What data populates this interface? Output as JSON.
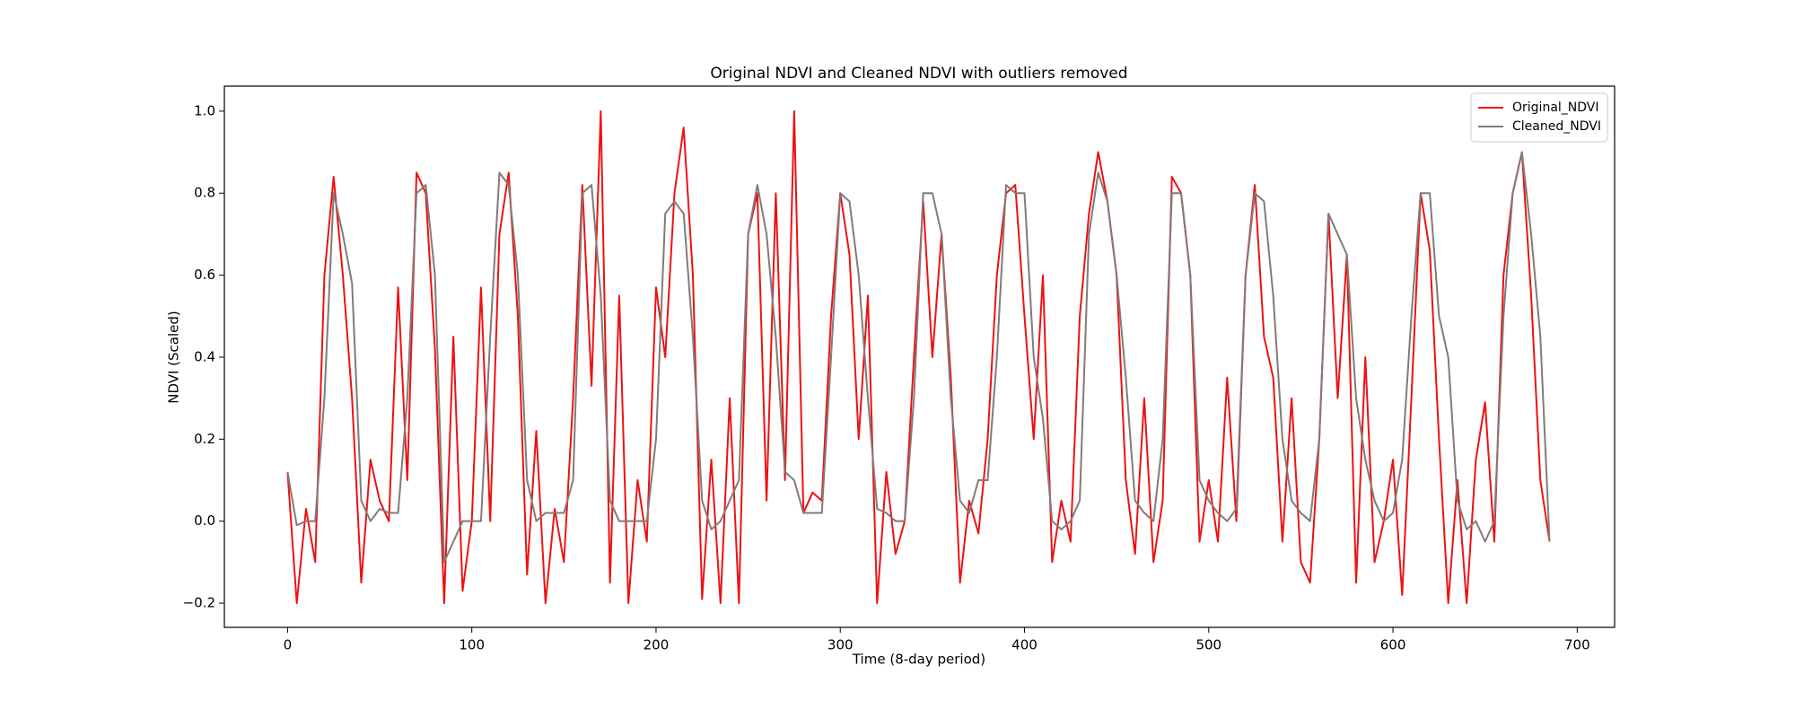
{
  "chart_data": {
    "type": "line",
    "title": "Original NDVI and Cleaned NDVI with outliers removed",
    "xlabel": "Time (8-day period)",
    "ylabel": "NDVI (Scaled)",
    "x": [
      0,
      5,
      10,
      15,
      20,
      25,
      30,
      35,
      40,
      45,
      50,
      55,
      60,
      65,
      70,
      75,
      80,
      85,
      90,
      95,
      100,
      105,
      110,
      115,
      120,
      125,
      130,
      135,
      140,
      145,
      150,
      155,
      160,
      165,
      170,
      175,
      180,
      185,
      190,
      195,
      200,
      205,
      210,
      215,
      220,
      225,
      230,
      235,
      240,
      245,
      250,
      255,
      260,
      265,
      270,
      275,
      280,
      285,
      290,
      295,
      300,
      305,
      310,
      315,
      320,
      325,
      330,
      335,
      340,
      345,
      350,
      355,
      360,
      365,
      370,
      375,
      380,
      385,
      390,
      395,
      400,
      405,
      410,
      415,
      420,
      425,
      430,
      435,
      440,
      445,
      450,
      455,
      460,
      465,
      470,
      475,
      480,
      485,
      490,
      495,
      500,
      505,
      510,
      515,
      520,
      525,
      530,
      535,
      540,
      545,
      550,
      555,
      560,
      565,
      570,
      575,
      580,
      585,
      590,
      595,
      600,
      605,
      610,
      615,
      620,
      625,
      630,
      635,
      640,
      645,
      650,
      655,
      660,
      665,
      670,
      675,
      680,
      685
    ],
    "series": [
      {
        "name": "Original_NDVI",
        "color": "#ee1111",
        "values": [
          0.12,
          -0.2,
          0.03,
          -0.1,
          0.6,
          0.84,
          0.6,
          0.3,
          -0.15,
          0.15,
          0.05,
          0.0,
          0.57,
          0.1,
          0.85,
          0.8,
          0.42,
          -0.2,
          0.45,
          -0.17,
          0.0,
          0.57,
          0.0,
          0.7,
          0.85,
          0.5,
          -0.13,
          0.22,
          -0.2,
          0.03,
          -0.1,
          0.3,
          0.82,
          0.33,
          1.0,
          -0.15,
          0.55,
          -0.2,
          0.1,
          -0.05,
          0.57,
          0.4,
          0.8,
          0.96,
          0.6,
          -0.19,
          0.15,
          -0.2,
          0.3,
          -0.2,
          0.7,
          0.8,
          0.05,
          0.8,
          0.1,
          1.0,
          0.02,
          0.07,
          0.05,
          0.5,
          0.8,
          0.65,
          0.2,
          0.55,
          -0.2,
          0.12,
          -0.08,
          0.0,
          0.4,
          0.78,
          0.4,
          0.7,
          0.35,
          -0.15,
          0.05,
          -0.03,
          0.2,
          0.6,
          0.8,
          0.82,
          0.5,
          0.2,
          0.6,
          -0.1,
          0.05,
          -0.05,
          0.5,
          0.75,
          0.9,
          0.78,
          0.6,
          0.1,
          -0.08,
          0.3,
          -0.1,
          0.05,
          0.84,
          0.8,
          0.6,
          -0.05,
          0.1,
          -0.05,
          0.35,
          0.0,
          0.6,
          0.82,
          0.45,
          0.35,
          -0.05,
          0.3,
          -0.1,
          -0.15,
          0.2,
          0.75,
          0.3,
          0.65,
          -0.15,
          0.4,
          -0.1,
          0.0,
          0.15,
          -0.18,
          0.3,
          0.8,
          0.66,
          0.2,
          -0.2,
          0.1,
          -0.2,
          0.15,
          0.29,
          -0.05,
          0.6,
          0.8,
          0.9,
          0.55,
          0.1,
          -0.05
        ]
      },
      {
        "name": "Cleaned_NDVI",
        "color": "#857979",
        "values": [
          0.12,
          -0.01,
          0.0,
          0.0,
          0.3,
          0.8,
          0.7,
          0.58,
          0.05,
          0.0,
          0.03,
          0.02,
          0.02,
          0.3,
          0.8,
          0.82,
          0.6,
          -0.1,
          -0.05,
          0.0,
          0.0,
          0.0,
          0.45,
          0.85,
          0.82,
          0.6,
          0.1,
          0.0,
          0.02,
          0.02,
          0.02,
          0.1,
          0.8,
          0.82,
          0.55,
          0.05,
          0.0,
          0.0,
          0.0,
          0.0,
          0.2,
          0.75,
          0.78,
          0.75,
          0.45,
          0.05,
          -0.02,
          0.0,
          0.05,
          0.1,
          0.7,
          0.82,
          0.7,
          0.45,
          0.12,
          0.1,
          0.02,
          0.02,
          0.02,
          0.4,
          0.8,
          0.78,
          0.6,
          0.3,
          0.03,
          0.02,
          0.0,
          0.0,
          0.3,
          0.8,
          0.8,
          0.7,
          0.3,
          0.05,
          0.02,
          0.1,
          0.1,
          0.4,
          0.82,
          0.8,
          0.8,
          0.4,
          0.25,
          0.0,
          -0.02,
          0.0,
          0.05,
          0.7,
          0.85,
          0.78,
          0.6,
          0.35,
          0.05,
          0.02,
          0.0,
          0.2,
          0.8,
          0.8,
          0.6,
          0.1,
          0.05,
          0.02,
          0.0,
          0.03,
          0.6,
          0.8,
          0.78,
          0.55,
          0.2,
          0.05,
          0.02,
          0.0,
          0.2,
          0.75,
          0.7,
          0.65,
          0.3,
          0.15,
          0.05,
          0.0,
          0.02,
          0.15,
          0.5,
          0.8,
          0.8,
          0.5,
          0.4,
          0.05,
          -0.02,
          0.0,
          -0.05,
          0.0,
          0.5,
          0.8,
          0.9,
          0.7,
          0.45,
          -0.05
        ]
      }
    ],
    "xlim": [
      -34.3,
      720.3
    ],
    "xticks": [
      0,
      100,
      200,
      300,
      400,
      500,
      600,
      700
    ],
    "ylim": [
      -0.259,
      1.061
    ],
    "yticks": [
      {
        "value": -0.2,
        "label": "−0.2"
      },
      {
        "value": 0.0,
        "label": "0.0"
      },
      0.2,
      0.4,
      0.6,
      0.8,
      {
        "value": 1.0,
        "label": "1.0"
      }
    ],
    "legend": "upper right"
  }
}
